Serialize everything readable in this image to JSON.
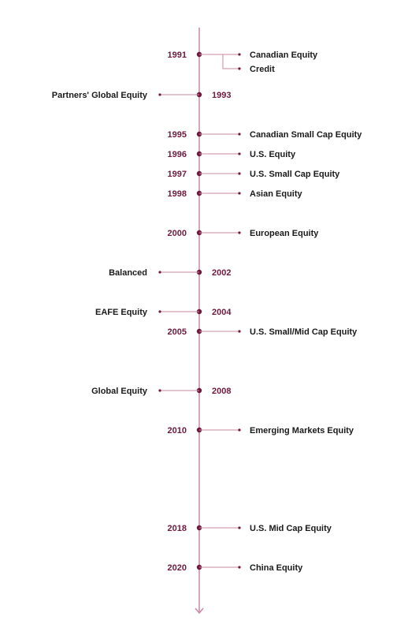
{
  "colors": {
    "line": "#c98aa3",
    "dot": "#6e1a3e",
    "year": "#6e1a3e",
    "text": "#1a1a1a"
  },
  "events": [
    {
      "year": "1991",
      "labels": [
        "Canadian Equity",
        "Credit"
      ],
      "side": "right"
    },
    {
      "year": "1993",
      "labels": [
        "Partners' Global Equity"
      ],
      "side": "left"
    },
    {
      "year": "1995",
      "labels": [
        "Canadian Small Cap Equity"
      ],
      "side": "right"
    },
    {
      "year": "1996",
      "labels": [
        "U.S. Equity"
      ],
      "side": "right"
    },
    {
      "year": "1997",
      "labels": [
        "U.S. Small Cap Equity"
      ],
      "side": "right"
    },
    {
      "year": "1998",
      "labels": [
        "Asian Equity"
      ],
      "side": "right"
    },
    {
      "year": "2000",
      "labels": [
        "European Equity"
      ],
      "side": "right"
    },
    {
      "year": "2002",
      "labels": [
        "Balanced"
      ],
      "side": "left"
    },
    {
      "year": "2004",
      "labels": [
        "EAFE Equity"
      ],
      "side": "left"
    },
    {
      "year": "2005",
      "labels": [
        "U.S. Small/Mid Cap Equity"
      ],
      "side": "right"
    },
    {
      "year": "2008",
      "labels": [
        "Global Equity"
      ],
      "side": "left"
    },
    {
      "year": "2010",
      "labels": [
        "Emerging Markets Equity"
      ],
      "side": "right"
    },
    {
      "year": "2018",
      "labels": [
        "U.S. Mid Cap Equity"
      ],
      "side": "right"
    },
    {
      "year": "2020",
      "labels": [
        "China Equity"
      ],
      "side": "right"
    }
  ]
}
